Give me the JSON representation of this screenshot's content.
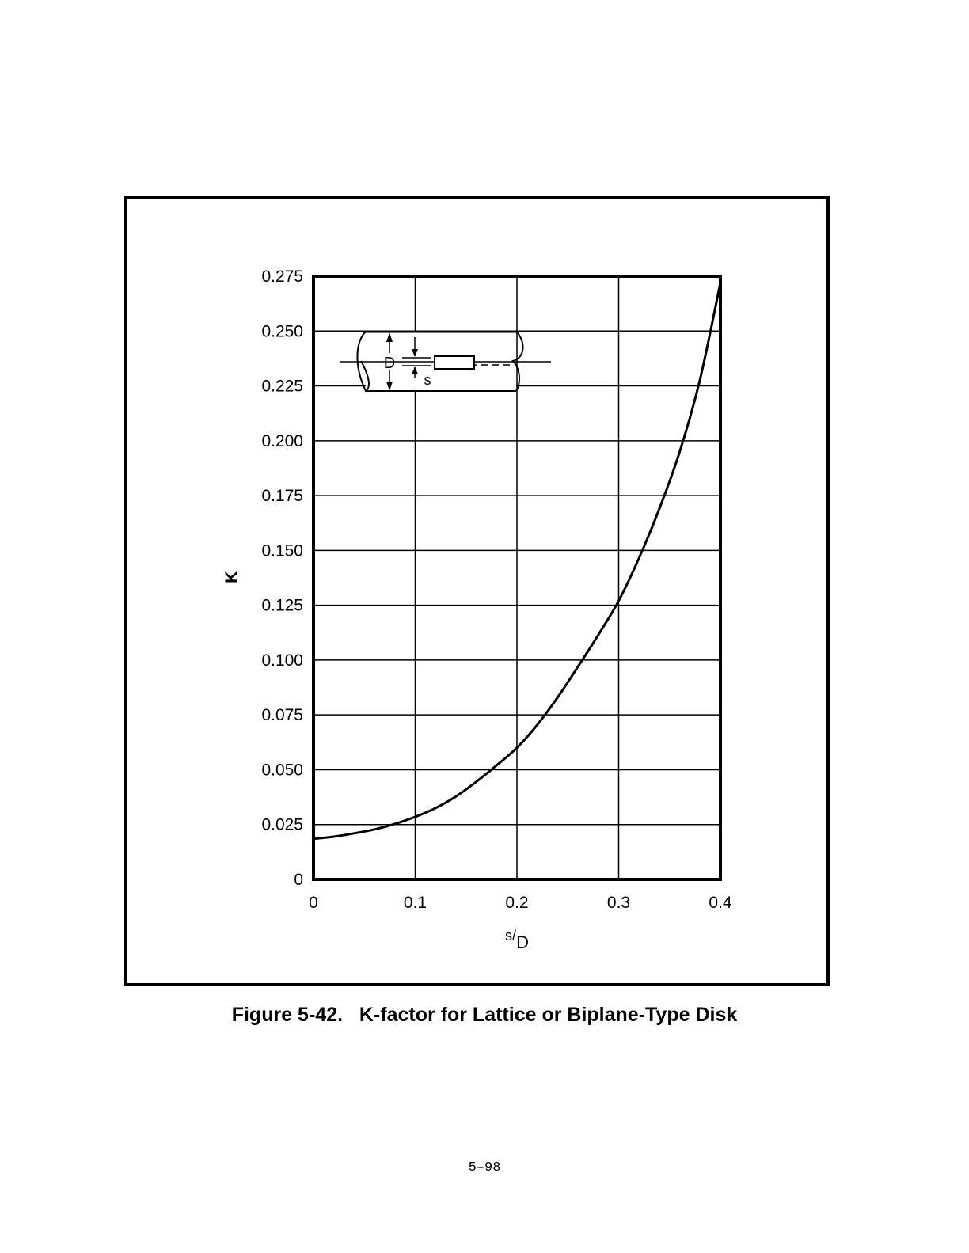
{
  "figure": {
    "caption": "Figure 5-42.   K-factor for Lattice or Biplane-Type Disk",
    "page_number": "5–98"
  },
  "chart_data": {
    "type": "line",
    "xlabel": "s/D",
    "xlabel_num": "s",
    "xlabel_den": "D",
    "ylabel": "K",
    "xlim": [
      0,
      0.4
    ],
    "ylim": [
      0,
      0.275
    ],
    "x_ticks": [
      0,
      0.1,
      0.2,
      0.3,
      0.4
    ],
    "x_tick_labels": [
      "0",
      "0.1",
      "0.2",
      "0.3",
      "0.4"
    ],
    "y_ticks": [
      0,
      0.025,
      0.05,
      0.075,
      0.1,
      0.125,
      0.15,
      0.175,
      0.2,
      0.225,
      0.25,
      0.275
    ],
    "y_tick_labels": [
      "0",
      "0.025",
      "0.050",
      "0.075",
      "0.100",
      "0.125",
      "0.150",
      "0.175",
      "0.200",
      "0.225",
      "0.250",
      "0.275"
    ],
    "grid": true,
    "series": [
      {
        "x": [
          0,
          0.02,
          0.04,
          0.06,
          0.08,
          0.1,
          0.12,
          0.14,
          0.16,
          0.18,
          0.2,
          0.22,
          0.24,
          0.26,
          0.28,
          0.3,
          0.32,
          0.34,
          0.36,
          0.38,
          0.4
        ],
        "y": [
          0.0185,
          0.0195,
          0.021,
          0.0228,
          0.0253,
          0.0285,
          0.0325,
          0.0378,
          0.0445,
          0.052,
          0.06,
          0.0705,
          0.083,
          0.097,
          0.1115,
          0.127,
          0.1465,
          0.169,
          0.195,
          0.228,
          0.272
        ]
      }
    ],
    "inset": {
      "description_labels": [
        "D",
        "s"
      ]
    }
  }
}
